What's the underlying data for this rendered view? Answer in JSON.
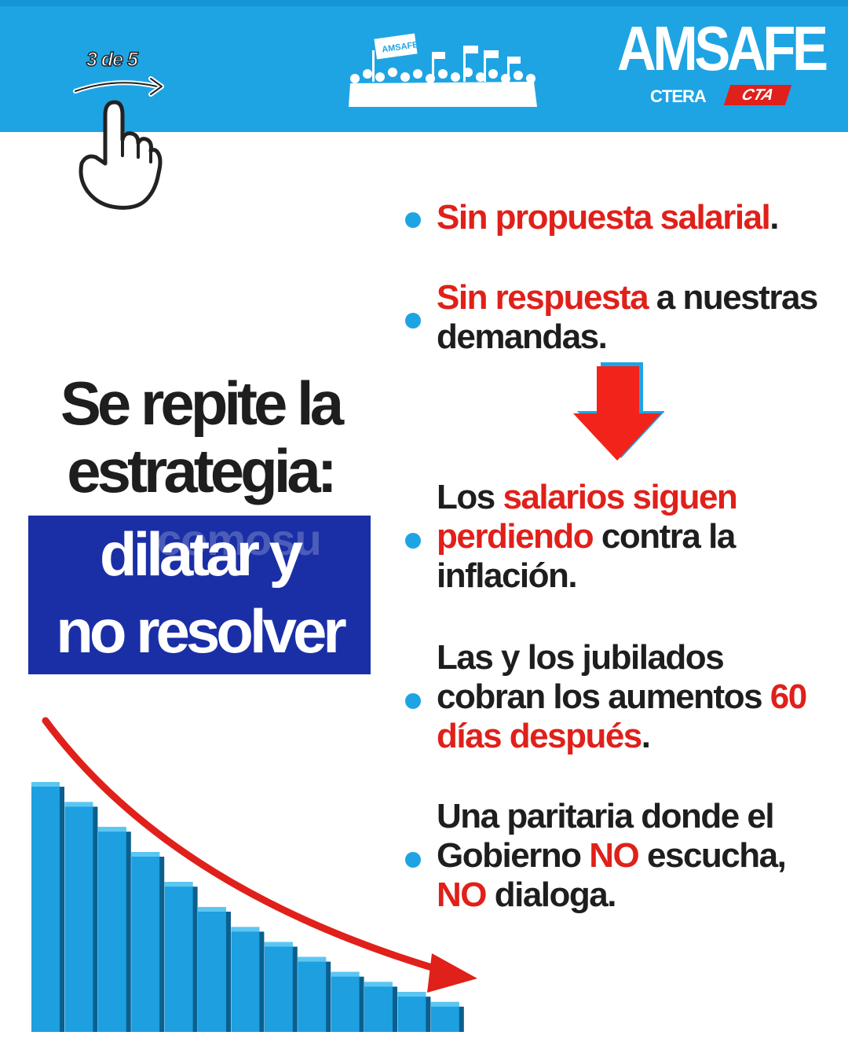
{
  "slide_counter": "3 de 5",
  "header": {
    "banner_text": "AMSAFE",
    "logo": {
      "name": "AMSAFE",
      "sub_left": "CTERA",
      "sub_right": "CTA"
    }
  },
  "headline": {
    "line1": "Se repite la",
    "line2": "estrategia:",
    "highlight1": "dilatar y",
    "highlight2": "no resolver"
  },
  "watermark": "comosu",
  "bullets": [
    {
      "lines": [
        [
          {
            "t": "Sin propuesta salarial",
            "red": true
          },
          {
            "t": ".",
            "red": false
          }
        ]
      ]
    },
    {
      "lines": [
        [
          {
            "t": "Sin respuesta",
            "red": true
          },
          {
            "t": " a nuestras",
            "red": false
          }
        ],
        [
          {
            "t": "demandas.",
            "red": false
          }
        ]
      ]
    },
    {
      "lines": [
        [
          {
            "t": "Los ",
            "red": false
          },
          {
            "t": "salarios siguen",
            "red": true
          }
        ],
        [
          {
            "t": "perdiendo",
            "red": true
          },
          {
            "t": " contra la",
            "red": false
          }
        ],
        [
          {
            "t": "inflación.",
            "red": false
          }
        ]
      ]
    },
    {
      "lines": [
        [
          {
            "t": "Las y los jubilados",
            "red": false
          }
        ],
        [
          {
            "t": "cobran los aumentos ",
            "red": false
          },
          {
            "t": "60",
            "red": true
          }
        ],
        [
          {
            "t": "días después",
            "red": true
          },
          {
            "t": ".",
            "red": false
          }
        ]
      ]
    },
    {
      "lines": [
        [
          {
            "t": "Una paritaria donde el",
            "red": false
          }
        ],
        [
          {
            "t": "Gobierno ",
            "red": false
          },
          {
            "t": "NO",
            "red": true
          },
          {
            "t": " escucha,",
            "red": false
          }
        ],
        [
          {
            "t": "NO",
            "red": true
          },
          {
            "t": " dialoga.",
            "red": false
          }
        ]
      ]
    }
  ],
  "colors": {
    "header_blue": "#1fa4e3",
    "accent_red": "#e0201a",
    "highlight_navy": "#1a2fa6",
    "text_dark": "#1e1e1e",
    "bar_blue": "#1d9fe0"
  },
  "icons": [
    "swipe-hand-icon",
    "right-arrow-icon",
    "crowd-protest-icon",
    "down-arrow-icon",
    "declining-bar-chart-icon",
    "trend-arrow-icon"
  ],
  "decline_bars_relative": [
    1.0,
    0.92,
    0.82,
    0.72,
    0.6,
    0.5,
    0.42,
    0.36,
    0.3,
    0.24,
    0.2,
    0.16,
    0.12
  ]
}
